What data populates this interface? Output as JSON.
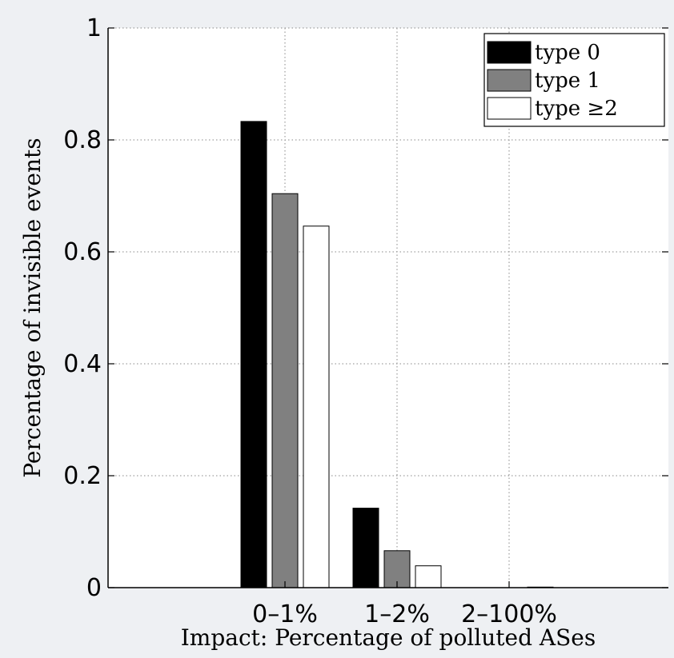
{
  "chart_data": {
    "type": "bar",
    "categories": [
      "0–1%",
      "1–2%",
      "2–100%"
    ],
    "series": [
      {
        "name": "type 0",
        "values": [
          0.833,
          0.142,
          0.0
        ],
        "color": "#000000"
      },
      {
        "name": "type 1",
        "values": [
          0.704,
          0.066,
          0.0
        ],
        "color": "#808080"
      },
      {
        "name": "type ≥2",
        "values": [
          0.646,
          0.039,
          0.001
        ],
        "color": "#ffffff"
      }
    ],
    "xlabel": "Impact: Percentage of polluted ASes",
    "ylabel": "Percentage of invisible events",
    "ylim": [
      0,
      1
    ],
    "yticks": [
      "0",
      "0.2",
      "0.4",
      "0.6",
      "0.8",
      "1"
    ],
    "grid": true,
    "legend_position": "top-right"
  }
}
